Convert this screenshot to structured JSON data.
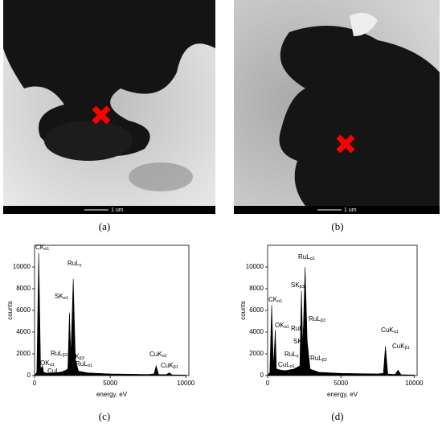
{
  "images": [
    {
      "caption": "(a)",
      "scale": "1 um"
    },
    {
      "caption": "(b)",
      "scale": "1 um"
    }
  ],
  "chart_data": [
    {
      "type": "line",
      "caption": "(c)",
      "xlabel": "energy, eV",
      "ylabel": "counts",
      "color": "#000000",
      "x": [
        0,
        150,
        277,
        400,
        525,
        600,
        930,
        1200,
        1800,
        2200,
        2307,
        2400,
        2558,
        2700,
        2900,
        3500,
        5000,
        7500,
        7900,
        8040,
        8200,
        8700,
        8900,
        9100,
        10000
      ],
      "values": [
        0,
        300,
        11300,
        600,
        900,
        300,
        200,
        250,
        300,
        600,
        5800,
        1800,
        8900,
        1500,
        400,
        250,
        150,
        100,
        150,
        900,
        100,
        80,
        250,
        60,
        40
      ],
      "xlim": [
        0,
        10200
      ],
      "ylim": [
        0,
        12000
      ],
      "xticks": [
        0,
        5000,
        10000
      ],
      "yticks": [
        0,
        2000,
        4000,
        6000,
        8000,
        10000
      ],
      "annotations": [
        {
          "text": "CK",
          "sub": "α1"
        },
        {
          "text": "RuL",
          "sub": "γ"
        },
        {
          "text": "SK",
          "sub": "α1"
        },
        {
          "text": "RuL",
          "sub": "β3"
        },
        {
          "text": "SK",
          "sub": "β3"
        },
        {
          "text": "RuL",
          "sub": "α1"
        },
        {
          "text": "OK",
          "sub": "α1"
        },
        {
          "text": "CuL",
          "sub": "α1"
        },
        {
          "text": "CuK",
          "sub": "α1"
        },
        {
          "text": "CuK",
          "sub": "β1"
        }
      ]
    },
    {
      "type": "line",
      "caption": "(d)",
      "xlabel": "energy, eV",
      "ylabel": "counts",
      "color": "#000000",
      "x": [
        0,
        150,
        277,
        400,
        525,
        600,
        930,
        1200,
        1800,
        2200,
        2307,
        2400,
        2558,
        2700,
        2900,
        3500,
        5000,
        7500,
        7900,
        8040,
        8200,
        8700,
        8900,
        9100,
        10000
      ],
      "values": [
        0,
        300,
        6500,
        700,
        4200,
        600,
        500,
        450,
        600,
        900,
        7800,
        2500,
        10000,
        3200,
        600,
        300,
        200,
        150,
        200,
        2700,
        150,
        100,
        500,
        80,
        50
      ],
      "xlim": [
        0,
        10200
      ],
      "ylim": [
        0,
        12000
      ],
      "xticks": [
        0,
        5000,
        10000
      ],
      "yticks": [
        0,
        2000,
        4000,
        6000,
        8000,
        10000
      ],
      "annotations": [
        {
          "text": "RuL",
          "sub": "α1"
        },
        {
          "text": "SK",
          "sub": "β3"
        },
        {
          "text": "CK",
          "sub": "α1"
        },
        {
          "text": "OK",
          "sub": "α1"
        },
        {
          "text": "RuL",
          "sub": "β1"
        },
        {
          "text": "RuL",
          "sub": "β3"
        },
        {
          "text": "SK",
          "sub": "α"
        },
        {
          "text": "RuL",
          "sub": "γ"
        },
        {
          "text": "RuL",
          "sub": "β2"
        },
        {
          "text": "CuL",
          "sub": "α1"
        },
        {
          "text": "CuK",
          "sub": "α1"
        },
        {
          "text": "CuK",
          "sub": "β1"
        }
      ]
    }
  ]
}
